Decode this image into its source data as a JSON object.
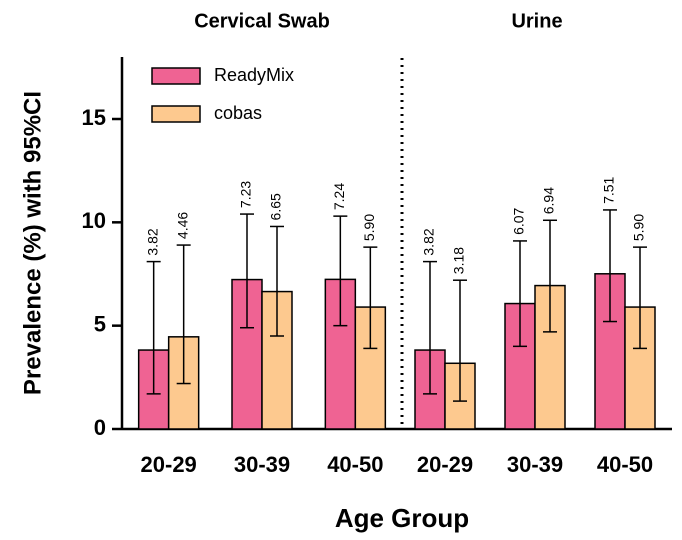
{
  "chart_data": {
    "type": "bar",
    "ylabel": "Prevalence (%) with 95%CI",
    "xlabel": "Age Group",
    "ylim": [
      0,
      18
    ],
    "yticks": [
      0,
      5,
      10,
      15
    ],
    "series": [
      {
        "name": "ReadyMix",
        "color": "#ef6393"
      },
      {
        "name": "cobas",
        "color": "#fdc98f"
      }
    ],
    "panels": [
      {
        "title": "Cervical Swab",
        "categories": [
          "20-29",
          "30-39",
          "40-50"
        ],
        "series": [
          {
            "values": [
              3.82,
              7.23,
              7.24
            ],
            "value_labels": [
              "3.82",
              "7.23",
              "7.24"
            ],
            "ci_low": [
              1.7,
              4.9,
              5.0
            ],
            "ci_high": [
              8.1,
              10.4,
              10.3
            ]
          },
          {
            "values": [
              4.46,
              6.65,
              5.9
            ],
            "value_labels": [
              "4.46",
              "6.65",
              "5.90"
            ],
            "ci_low": [
              2.2,
              4.5,
              3.9
            ],
            "ci_high": [
              8.9,
              9.8,
              8.8
            ]
          }
        ]
      },
      {
        "title": "Urine",
        "categories": [
          "20-29",
          "30-39",
          "40-50"
        ],
        "series": [
          {
            "values": [
              3.82,
              6.07,
              7.51
            ],
            "value_labels": [
              "3.82",
              "6.07",
              "7.51"
            ],
            "ci_low": [
              1.7,
              4.0,
              5.2
            ],
            "ci_high": [
              8.1,
              9.1,
              10.6
            ]
          },
          {
            "values": [
              3.18,
              6.94,
              5.9
            ],
            "value_labels": [
              "3.18",
              "6.94",
              "5.90"
            ],
            "ci_low": [
              1.35,
              4.7,
              3.9
            ],
            "ci_high": [
              7.2,
              10.1,
              8.8
            ]
          }
        ]
      }
    ]
  }
}
